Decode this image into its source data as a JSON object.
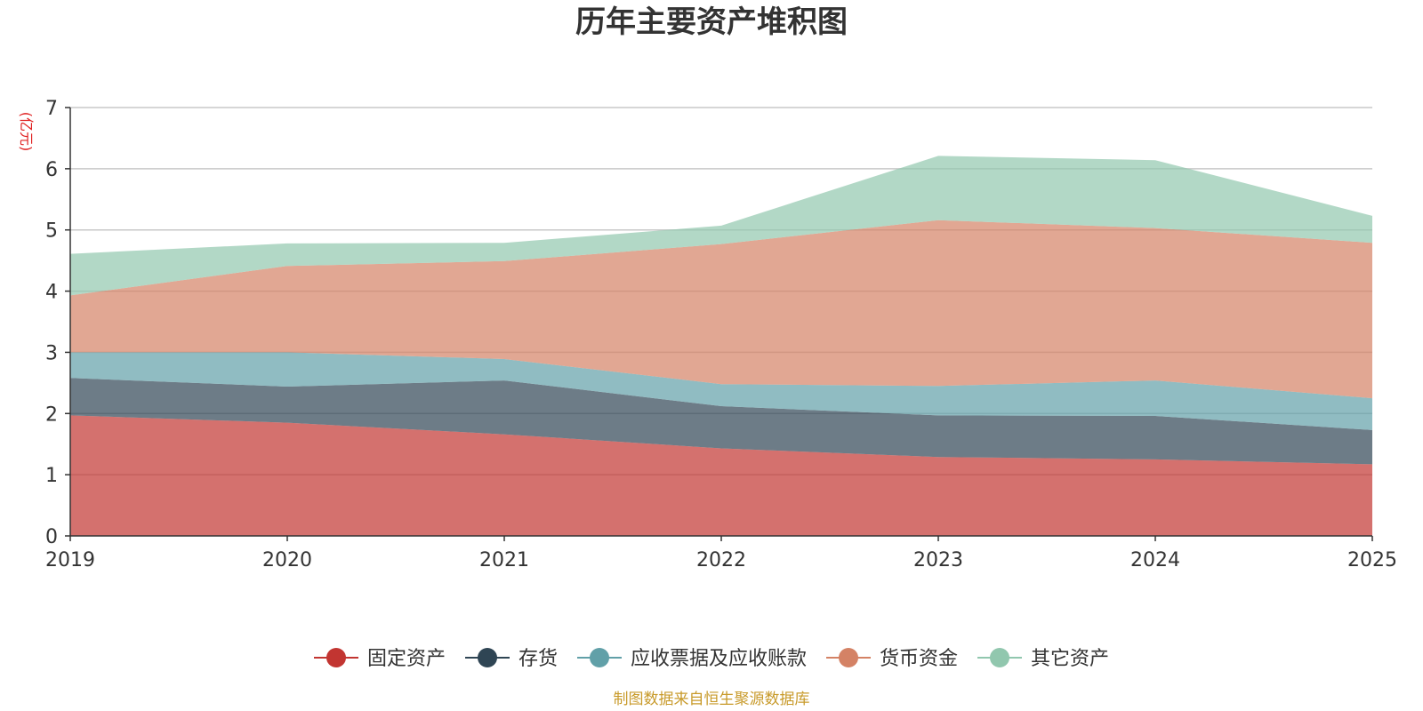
{
  "chart_data": {
    "type": "area",
    "stacked": true,
    "title": "历年主要资产堆积图",
    "unit_label": "(亿元)",
    "xlabel": "",
    "ylabel": "(亿元)",
    "categories": [
      "2019",
      "2020",
      "2021",
      "2022",
      "2023",
      "2024",
      "2025"
    ],
    "ylim": [
      0,
      7
    ],
    "yticks": [
      "0",
      "1",
      "2",
      "3",
      "4",
      "5",
      "6",
      "7"
    ],
    "grid": true,
    "legend_position": "bottom",
    "series": [
      {
        "name": "固定资产",
        "color": "#c23531",
        "values": [
          1.97,
          1.85,
          1.66,
          1.43,
          1.29,
          1.25,
          1.17
        ]
      },
      {
        "name": "存货",
        "color": "#2f4554",
        "values": [
          0.61,
          0.59,
          0.88,
          0.69,
          0.68,
          0.71,
          0.56
        ]
      },
      {
        "name": "应收票据及应收账款",
        "color": "#61a0a8",
        "values": [
          0.42,
          0.56,
          0.35,
          0.36,
          0.48,
          0.58,
          0.52
        ]
      },
      {
        "name": "货币资金",
        "color": "#d48265",
        "values": [
          0.93,
          1.41,
          1.6,
          2.29,
          2.71,
          2.49,
          2.54
        ]
      },
      {
        "name": "其它资产",
        "color": "#91c7ae",
        "values": [
          0.68,
          0.37,
          0.3,
          0.3,
          1.05,
          1.11,
          0.44
        ]
      }
    ],
    "source_note": "制图数据来自恒生聚源数据库"
  }
}
